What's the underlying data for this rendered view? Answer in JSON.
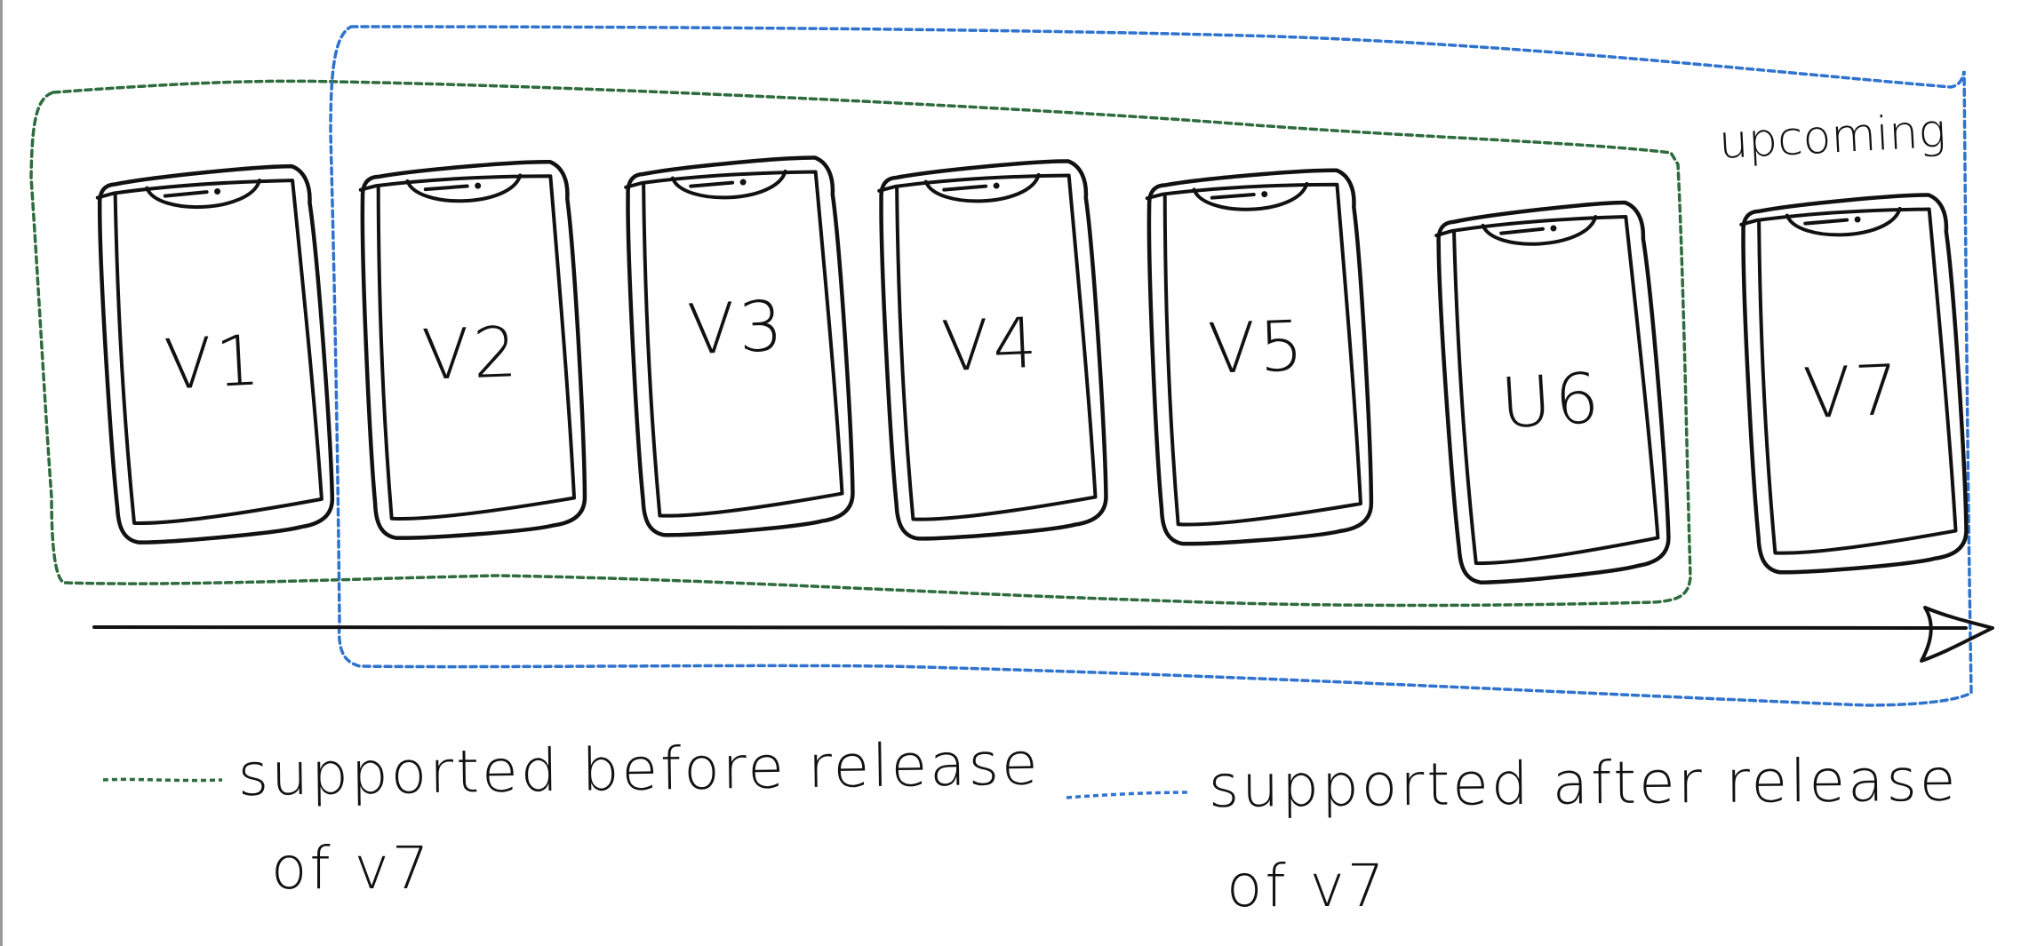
{
  "colors": {
    "ink": "#111111",
    "group_before": "#2e6b3d",
    "group_after": "#2f73cf"
  },
  "phones": [
    {
      "label": "V1"
    },
    {
      "label": "V2"
    },
    {
      "label": "V3"
    },
    {
      "label": "V4"
    },
    {
      "label": "V5"
    },
    {
      "label": "U6"
    },
    {
      "label": "V7"
    }
  ],
  "upcoming_label": "upcoming",
  "legend": {
    "before": {
      "line1": "supported before release",
      "line2": "of v7"
    },
    "after": {
      "line1": "supported after release",
      "line2": "of v7"
    }
  }
}
